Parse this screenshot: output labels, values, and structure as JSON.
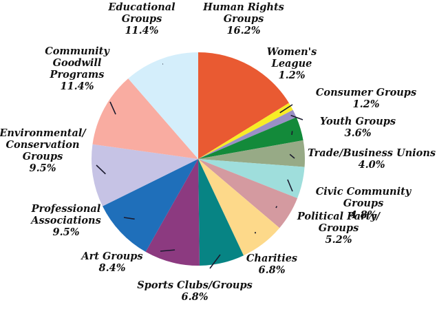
{
  "chart_data": {
    "type": "pie",
    "title": "",
    "legend": "none",
    "slices": [
      {
        "label_lines": [
          "Human Rights",
          "Groups",
          "16.2%"
        ],
        "label": "Human Rights Groups",
        "value": 16.2,
        "color": "#e95a32"
      },
      {
        "label_lines": [
          "Women's",
          "League",
          "1.2%"
        ],
        "label": "Women's League",
        "value": 1.2,
        "color": "#f8ec26"
      },
      {
        "label_lines": [
          "Consumer Groups",
          "1.2%"
        ],
        "label": "Consumer Groups",
        "value": 1.2,
        "color": "#9a8fc6"
      },
      {
        "label_lines": [
          "Youth Groups",
          "3.6%"
        ],
        "label": "Youth Groups",
        "value": 3.6,
        "color": "#138a3a"
      },
      {
        "label_lines": [
          "Trade/Business Unions",
          "4.0%"
        ],
        "label": "Trade/Business Unions",
        "value": 4.0,
        "color": "#97aa86"
      },
      {
        "label_lines": [
          "Civic Community",
          "Groups",
          "4.8%"
        ],
        "label": "Civic Community Groups",
        "value": 4.8,
        "color": "#9fdedc"
      },
      {
        "label_lines": [
          "Political Party/",
          "Groups",
          "5.2%"
        ],
        "label": "Political Party/Groups",
        "value": 5.2,
        "color": "#d49aa0"
      },
      {
        "label_lines": [
          "Charities",
          "6.8%"
        ],
        "label": "Charities",
        "value": 6.8,
        "color": "#fdd98a"
      },
      {
        "label_lines": [
          "Sports Clubs/Groups",
          "6.8%"
        ],
        "label": "Sports Clubs/Groups",
        "value": 6.8,
        "color": "#078484"
      },
      {
        "label_lines": [
          "Art Groups",
          "8.4%"
        ],
        "label": "Art Groups",
        "value": 8.4,
        "color": "#8c3a80"
      },
      {
        "label_lines": [
          "Professional",
          "Associations",
          "9.5%"
        ],
        "label": "Professional Associations",
        "value": 9.5,
        "color": "#1f6fba"
      },
      {
        "label_lines": [
          "Environmental/",
          "Conservation",
          "Groups",
          "9.5%"
        ],
        "label": "Environmental/Conservation Groups",
        "value": 9.5,
        "color": "#c6c3e5"
      },
      {
        "label_lines": [
          "Community",
          "Goodwill",
          "Programs",
          "11.4%"
        ],
        "label": "Community Goodwill Programs",
        "value": 11.4,
        "color": "#f9aca1"
      },
      {
        "label_lines": [
          "Educational",
          "Groups",
          "11.4%"
        ],
        "label": "Educational Groups",
        "value": 11.4,
        "color": "#d4eefb"
      }
    ]
  }
}
